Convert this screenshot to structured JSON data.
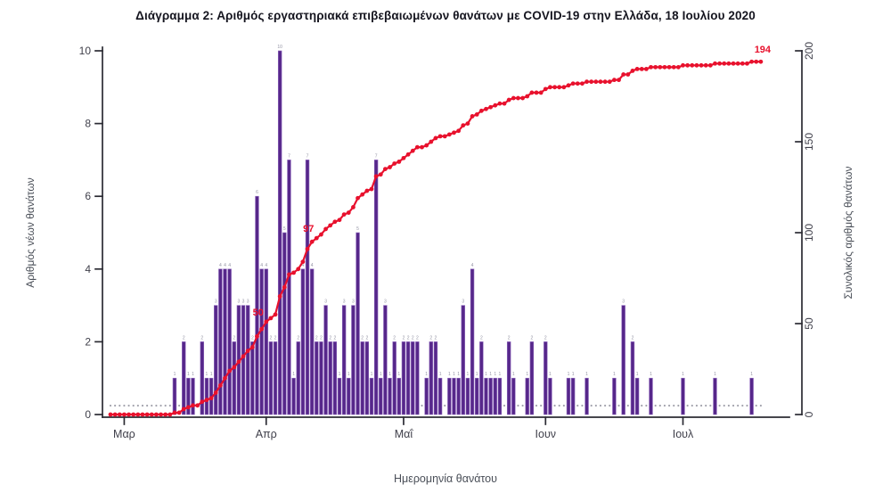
{
  "title": "Διάγραμμα 2: Αριθμός εργαστηριακά επιβεβαιωμένων θανάτων με COVID-19 στην Ελλάδα, 18 Ιουλίου 2020",
  "colors": {
    "bar": "#56278a",
    "bar_edge": "#8f68bd",
    "line": "#e8112d",
    "annotation": "#e8112d",
    "bar_label": "#9494a4",
    "zero_dot": "#a3a3ad",
    "axis": "#2b2b33",
    "tick_label": "#3f3f4a",
    "axis_title": "#4a4f58",
    "title": "#15151f"
  },
  "chart_data": {
    "type": "bar",
    "description": "Daily laboratory-confirmed COVID-19 deaths (purple bars, left axis) and cumulative deaths (red dotted curve, right axis) by date of death, Greece, through 18 July 2020",
    "axes": {
      "left": {
        "title": "Αριθμός νέων θανάτων",
        "ticks": [
          0,
          2,
          4,
          6,
          8,
          10
        ],
        "range": [
          0,
          10
        ]
      },
      "right": {
        "title": "Συνολικός αριθμός θανάτων",
        "ticks": [
          0,
          50,
          100,
          150,
          200
        ],
        "range": [
          0,
          200
        ]
      },
      "x": {
        "title": "Ημερομηνία θανάτου",
        "tick_labels": [
          "Μαρ",
          "Απρ",
          "Μαΐ",
          "Ιουν",
          "Ιουλ"
        ]
      }
    },
    "series": [
      {
        "name": "daily_new_deaths",
        "style": "bar"
      },
      {
        "name": "cumulative_deaths",
        "style": "line-dots",
        "final_value": 194
      }
    ],
    "lead_in_zero_days": 3,
    "months": [
      {
        "label": "Μαρ",
        "values": [
          0,
          0,
          0,
          0,
          0,
          0,
          0,
          0,
          0,
          0,
          0,
          1,
          0,
          2,
          1,
          1,
          0,
          2,
          1,
          1,
          3,
          4,
          4,
          4,
          2,
          3,
          3,
          3,
          2,
          6,
          4
        ]
      },
      {
        "label": "Απρ",
        "values": [
          4,
          2,
          2,
          10,
          5,
          7,
          1,
          2,
          4,
          7,
          4,
          2,
          2,
          3,
          2,
          2,
          1,
          3,
          1,
          3,
          5,
          2,
          2,
          1,
          7,
          1,
          3,
          1,
          2,
          1
        ]
      },
      {
        "label": "Μαΐ",
        "values": [
          2,
          2,
          2,
          2,
          0,
          1,
          2,
          2,
          1,
          0,
          1,
          1,
          1,
          3,
          1,
          4,
          1,
          2,
          1,
          1,
          1,
          1,
          0,
          2,
          1,
          0,
          0,
          1,
          2,
          0,
          0
        ]
      },
      {
        "label": "Ιουν",
        "values": [
          2,
          1,
          0,
          0,
          0,
          1,
          1,
          0,
          0,
          1,
          0,
          0,
          0,
          0,
          0,
          1,
          0,
          3,
          0,
          2,
          1,
          0,
          0,
          1,
          0,
          0,
          0,
          0,
          0,
          0
        ]
      },
      {
        "label": "Ιουλ",
        "values": [
          1,
          0,
          0,
          0,
          0,
          0,
          0,
          1,
          0,
          0,
          0,
          0,
          0,
          0,
          0,
          1,
          0,
          0
        ]
      }
    ],
    "annotations": [
      {
        "text": "50",
        "at_cumulative": 50,
        "placement": "first_reach"
      },
      {
        "text": "97",
        "at_cumulative": 97,
        "placement": "first_reach"
      },
      {
        "text": "194",
        "at_cumulative": 194,
        "placement": "end"
      }
    ]
  }
}
